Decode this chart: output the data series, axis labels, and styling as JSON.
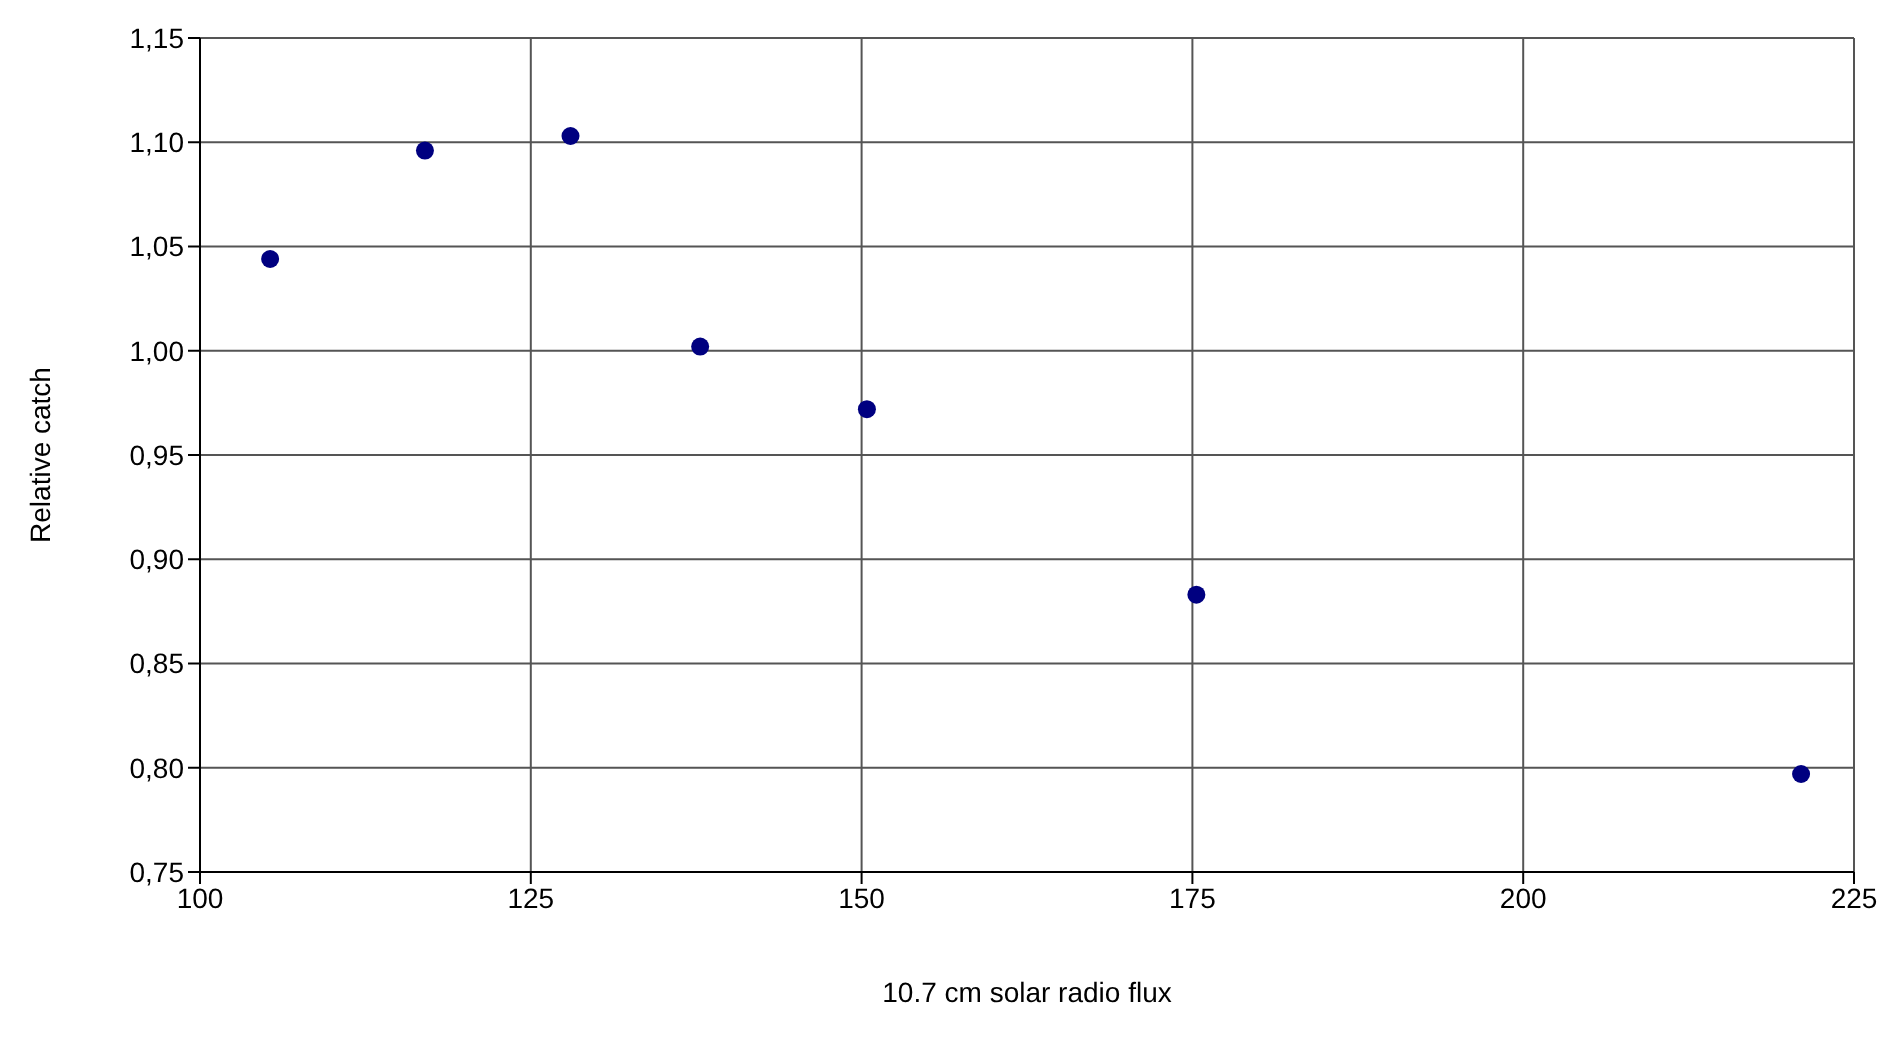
{
  "chart_data": {
    "type": "scatter",
    "xlabel": "10.7 cm solar radio flux",
    "ylabel": "Relative catch",
    "x": [
      105.3,
      117.0,
      128.0,
      137.8,
      150.4,
      175.3,
      221.0
    ],
    "series": [
      {
        "color": "#000080",
        "values": [
          1.044,
          1.096,
          1.103,
          1.002,
          0.972,
          0.883,
          0.797
        ]
      }
    ],
    "xlim": [
      100,
      225
    ],
    "xticks": [
      100,
      125,
      150,
      175,
      200,
      225
    ],
    "ylim": [
      0.75,
      1.15
    ],
    "yticks": [
      {
        "value": 0.75,
        "label": "0,75"
      },
      {
        "value": 0.8,
        "label": "0,80"
      },
      {
        "value": 0.85,
        "label": "0,85"
      },
      {
        "value": 0.9,
        "label": "0,90"
      },
      {
        "value": 0.95,
        "label": "0,95"
      },
      {
        "value": 1.0,
        "label": "1,00"
      },
      {
        "value": 1.05,
        "label": "1,05"
      },
      {
        "value": 1.1,
        "label": "1,10"
      },
      {
        "value": 1.15,
        "label": "1,15"
      }
    ],
    "grid": true,
    "marker": "circle"
  }
}
